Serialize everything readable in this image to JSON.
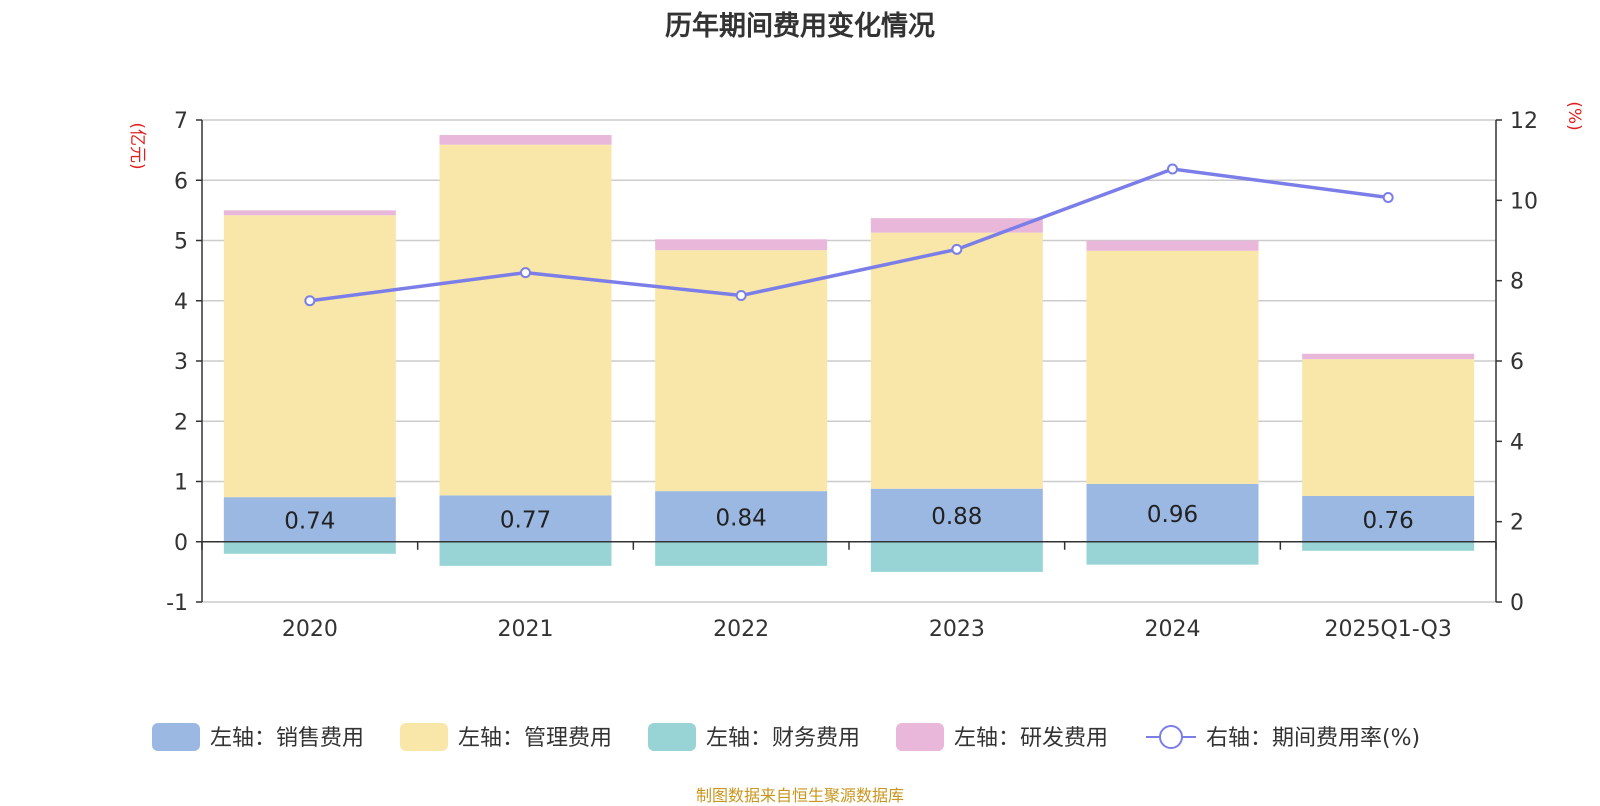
{
  "chart_data": {
    "type": "bar",
    "title": "历年期间费用变化情况",
    "source": "制图数据来自恒生聚源数据库",
    "left_axis_unit": "(亿元)",
    "right_axis_unit": "(%)",
    "left_ylim": [
      -1,
      7
    ],
    "left_ticks": [
      "-1",
      "0",
      "1",
      "2",
      "3",
      "4",
      "5",
      "6",
      "7"
    ],
    "right_ylim": [
      0,
      12
    ],
    "right_ticks": [
      "0",
      "2",
      "4",
      "6",
      "8",
      "10",
      "12"
    ],
    "categories": [
      "2020",
      "2021",
      "2022",
      "2023",
      "2024",
      "2025Q1-Q3"
    ],
    "series": [
      {
        "name": "左轴：销售费用",
        "type": "bar",
        "axis": "left",
        "color": "#9bb8e3",
        "values": [
          0.74,
          0.77,
          0.84,
          0.88,
          0.96,
          0.76
        ],
        "labels": [
          "0.74",
          "0.77",
          "0.84",
          "0.88",
          "0.96",
          "0.76"
        ]
      },
      {
        "name": "左轴：管理费用",
        "type": "bar",
        "axis": "left",
        "color": "#f8e7a8",
        "values": [
          4.68,
          5.82,
          4.0,
          4.25,
          3.87,
          2.27
        ]
      },
      {
        "name": "左轴：财务费用",
        "type": "bar",
        "axis": "left",
        "color": "#98d4d5",
        "values": [
          -0.2,
          -0.4,
          -0.4,
          -0.5,
          -0.38,
          -0.15
        ]
      },
      {
        "name": "左轴：研发费用",
        "type": "bar",
        "axis": "left",
        "color": "#e8b7d9",
        "values": [
          0.08,
          0.16,
          0.18,
          0.24,
          0.17,
          0.09
        ]
      },
      {
        "name": "右轴：期间费用率(%)",
        "type": "line",
        "axis": "right",
        "color": "#7b7ee8",
        "values": [
          7.5,
          8.2,
          7.63,
          8.78,
          10.78,
          10.07
        ]
      }
    ]
  }
}
